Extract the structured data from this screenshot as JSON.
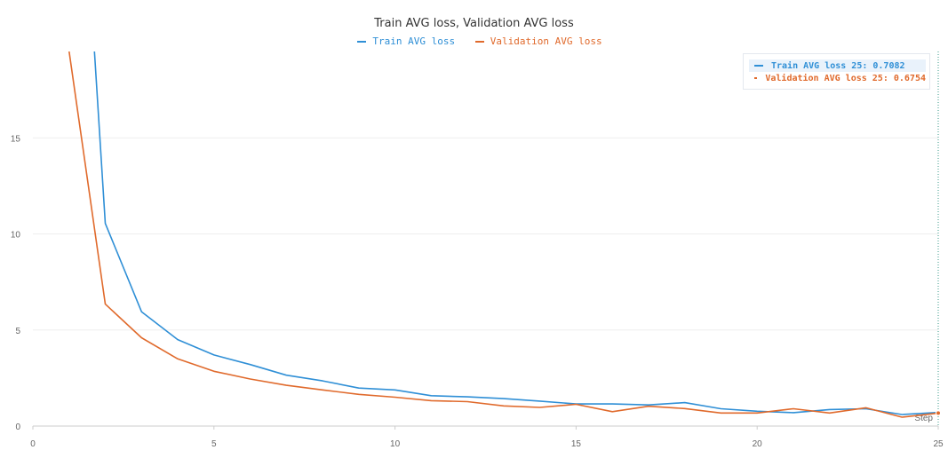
{
  "chart_data": {
    "type": "line",
    "title": "Train AVG loss, Validation AVG loss",
    "xlabel": "Step",
    "ylabel": "",
    "xlim": [
      0,
      25
    ],
    "ylim": [
      0,
      19.5
    ],
    "x_ticks": [
      "0",
      "5",
      "10",
      "15",
      "20",
      "25"
    ],
    "y_ticks": [
      "0",
      "5",
      "10",
      "15"
    ],
    "x_tick_values": [
      0,
      5,
      10,
      15,
      20,
      25
    ],
    "y_tick_values": [
      0,
      5,
      10,
      15
    ],
    "grid": true,
    "legend_position": "top-center",
    "series": [
      {
        "name": "Train AVG loss",
        "color": "#2f8fd6",
        "x": [
          1.7,
          2,
          3,
          4,
          5,
          6,
          7,
          8,
          9,
          10,
          11,
          12,
          13,
          14,
          15,
          16,
          17,
          18,
          19,
          20,
          21,
          22,
          23,
          24,
          25
        ],
        "y": [
          19.5,
          10.55,
          5.95,
          4.5,
          3.7,
          3.2,
          2.65,
          2.35,
          1.98,
          1.88,
          1.58,
          1.52,
          1.43,
          1.3,
          1.15,
          1.15,
          1.1,
          1.22,
          0.9,
          0.77,
          0.7,
          0.86,
          0.9,
          0.6,
          0.7082
        ]
      },
      {
        "name": "Validation AVG loss",
        "color": "#e06a2c",
        "x": [
          1,
          2,
          3,
          4,
          5,
          6,
          7,
          8,
          9,
          10,
          11,
          12,
          13,
          14,
          15,
          16,
          17,
          18,
          19,
          20,
          21,
          22,
          23,
          24,
          25
        ],
        "y": [
          19.5,
          6.35,
          4.6,
          3.5,
          2.85,
          2.45,
          2.12,
          1.88,
          1.65,
          1.5,
          1.32,
          1.27,
          1.05,
          0.97,
          1.13,
          0.75,
          1.03,
          0.91,
          0.68,
          0.68,
          0.9,
          0.68,
          0.95,
          0.46,
          0.6754
        ]
      }
    ]
  },
  "tooltip": {
    "rows": [
      {
        "label": "Train AVG loss 25: 0.7082",
        "color": "#2f8fd6"
      },
      {
        "label": "Validation AVG loss 25: 0.6754",
        "color": "#e06a2c"
      }
    ]
  },
  "hover_step": 25
}
